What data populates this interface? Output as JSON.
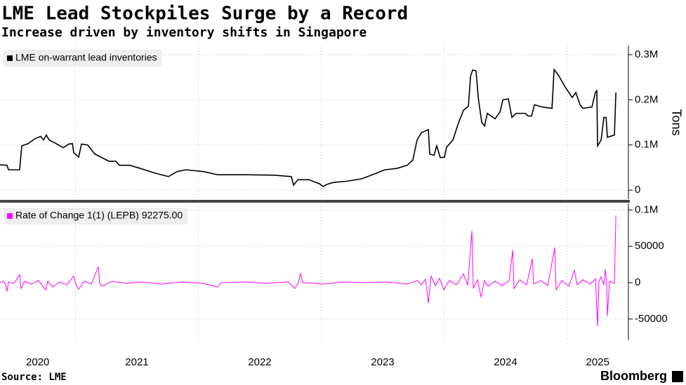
{
  "chart_data": [
    {
      "type": "line",
      "title": "LME Lead Stockpiles Surge by a Record",
      "subtitle": "Increase driven by inventory shifts in Singapore",
      "y_label": "Tons",
      "xlim": [
        2020.386,
        2025.5
      ],
      "xticks": [
        2020,
        2021,
        2022,
        2023,
        2024,
        2025
      ],
      "ylim": [
        -20000,
        320000
      ],
      "yticks": [
        0,
        {
          "value": 100000,
          "label": "0.1M"
        },
        {
          "value": 200000,
          "label": "0.2M"
        },
        {
          "value": 300000,
          "label": "0.3M"
        }
      ],
      "grid": true,
      "legend": "top-left",
      "series": [
        {
          "name": "LME on-warrant lead inventories",
          "color": "#000000",
          "x": [
            2020.386,
            2020.443,
            2020.455,
            2020.546,
            2020.563,
            2020.615,
            2020.672,
            2020.717,
            2020.74,
            2020.763,
            2020.786,
            2020.843,
            2020.9,
            2020.946,
            2020.975,
            2020.986,
            2021.026,
            2021.049,
            2021.1,
            2021.157,
            2021.215,
            2021.272,
            2021.329,
            2021.357,
            2021.443,
            2021.529,
            2021.643,
            2021.757,
            2021.826,
            2021.9,
            2022.043,
            2022.157,
            2022.386,
            2022.615,
            2022.757,
            2022.775,
            2022.809,
            2022.9,
            2022.986,
            2023.015,
            2023.049,
            2023.1,
            2023.215,
            2023.329,
            2023.415,
            2023.518,
            2023.615,
            2023.7,
            2023.746,
            2023.78,
            2023.815,
            2023.872,
            2023.883,
            2023.918,
            2023.94,
            2023.969,
            2024.003,
            2024.02,
            2024.072,
            2024.112,
            2024.158,
            2024.198,
            2024.215,
            2024.232,
            2024.26,
            2024.278,
            2024.306,
            2024.329,
            2024.352,
            2024.415,
            2024.455,
            2024.478,
            2024.523,
            2024.552,
            2024.586,
            2024.66,
            2024.683,
            2024.712,
            2024.735,
            2024.798,
            2024.878,
            2024.895,
            2024.929,
            2024.986,
            2025.043,
            2025.072,
            2025.106,
            2025.129,
            2025.203,
            2025.232,
            2025.243,
            2025.249,
            2025.278,
            2025.3,
            2025.318,
            2025.329,
            2025.386,
            2025.398
          ],
          "values": [
            56000,
            55000,
            45000,
            45000,
            98000,
            103000,
            114000,
            119000,
            111000,
            122000,
            111000,
            103000,
            94000,
            102000,
            103000,
            83000,
            73000,
            102000,
            100000,
            80000,
            72000,
            64000,
            64000,
            55000,
            55000,
            48000,
            38000,
            30000,
            41000,
            45000,
            41000,
            34000,
            34000,
            33000,
            30000,
            11000,
            23000,
            23000,
            14000,
            8000,
            13000,
            17000,
            20000,
            25000,
            34000,
            45000,
            48000,
            55000,
            67000,
            111000,
            127000,
            134000,
            80000,
            77000,
            98000,
            72000,
            73000,
            95000,
            111000,
            145000,
            177000,
            186000,
            252000,
            266000,
            264000,
            205000,
            150000,
            142000,
            170000,
            158000,
            173000,
            200000,
            202000,
            161000,
            170000,
            170000,
            164000,
            164000,
            189000,
            184000,
            181000,
            267000,
            255000,
            228000,
            205000,
            216000,
            189000,
            181000,
            184000,
            217000,
            220000,
            98000,
            111000,
            161000,
            161000,
            117000,
            122000,
            216000
          ]
        }
      ]
    },
    {
      "type": "line",
      "xlim": [
        2020.386,
        2025.5
      ],
      "xticks": [
        2020,
        2021,
        2022,
        2023,
        2024,
        2025
      ],
      "ylim": [
        -79000,
        109000
      ],
      "yticks": [
        -50000,
        0,
        50000,
        {
          "value": 100000,
          "label": "0.1M"
        }
      ],
      "grid": true,
      "legend": "top-left",
      "series": [
        {
          "name": "Rate of Change 1(1) (LEPB) 92275.00",
          "color": "#ff00ff",
          "x": [
            2020.386,
            2020.415,
            2020.432,
            2020.443,
            2020.455,
            2020.5,
            2020.546,
            2020.557,
            2020.586,
            2020.643,
            2020.7,
            2020.757,
            2020.775,
            2020.815,
            2020.872,
            2020.929,
            2020.986,
            2021.003,
            2021.026,
            2021.072,
            2021.129,
            2021.186,
            2021.197,
            2021.215,
            2021.3,
            2021.415,
            2021.529,
            2021.7,
            2021.872,
            2022.043,
            2022.157,
            2022.186,
            2022.386,
            2022.557,
            2022.729,
            2022.786,
            2022.815,
            2022.832,
            2022.849,
            2023.015,
            2023.186,
            2023.357,
            2023.529,
            2023.7,
            2023.786,
            2023.815,
            2023.849,
            2023.872,
            2023.895,
            2023.929,
            2023.963,
            2023.997,
            2024.043,
            2024.1,
            2024.158,
            2024.192,
            2024.226,
            2024.238,
            2024.272,
            2024.3,
            2024.329,
            2024.358,
            2024.415,
            2024.472,
            2024.529,
            2024.558,
            2024.569,
            2024.615,
            2024.672,
            2024.718,
            2024.729,
            2024.786,
            2024.843,
            2024.9,
            2024.912,
            2024.958,
            2025.015,
            2025.06,
            2025.083,
            2025.129,
            2025.186,
            2025.232,
            2025.249,
            2025.26,
            2025.278,
            2025.3,
            2025.312,
            2025.323,
            2025.329,
            2025.346,
            2025.386,
            2025.398
          ],
          "values": [
            0,
            2000,
            -3000,
            -12000,
            1000,
            -1000,
            11000,
            -8000,
            2000,
            -2000,
            3000,
            -10000,
            2000,
            -6000,
            1000,
            -3000,
            9000,
            -2000,
            -9000,
            2000,
            -2000,
            22000,
            -1000,
            -5000,
            2000,
            -1000,
            1000,
            -2000,
            1000,
            -1000,
            -6000,
            0,
            1000,
            -1000,
            1000,
            -8000,
            0,
            13000,
            0,
            -2000,
            1000,
            0,
            1000,
            -2000,
            3000,
            -3000,
            5000,
            -28000,
            9000,
            -4000,
            6000,
            -10000,
            3000,
            -3000,
            12000,
            -4000,
            71000,
            -8000,
            4000,
            -20000,
            3000,
            -5000,
            2000,
            -4000,
            3000,
            45000,
            -8000,
            4000,
            -3000,
            33000,
            -2000,
            3000,
            -4000,
            48000,
            -10000,
            3000,
            -5000,
            17000,
            -3000,
            4000,
            -2000,
            5000,
            -60000,
            2000,
            8000,
            -3000,
            18000,
            -2000,
            -46000,
            2000,
            -1000,
            92275
          ]
        }
      ]
    }
  ],
  "footer": {
    "source": "Source: LME",
    "brand": "Bloomberg"
  }
}
